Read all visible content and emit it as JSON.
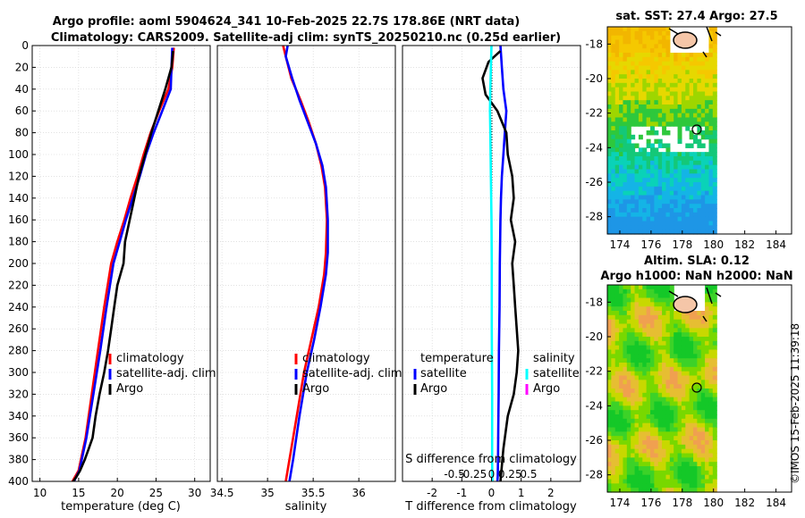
{
  "title_line1": "Argo profile: aoml 5904624_341 10-Feb-2025 22.7S 178.86E (NRT data)",
  "title_line2": "Climatology: CARS2009. Satellite-adj clim: synTS_20250210.nc (0.25d earlier)",
  "watermark": "©IMOS 15-Feb-2025 11:39:18",
  "colors": {
    "climatology": "#ff0000",
    "satellite_adj": "#0000ff",
    "argo": "#000000",
    "salinity_satellite": "#00ffff",
    "salinity_argo": "#ff00ff"
  },
  "chart_data": [
    {
      "type": "line",
      "id": "temperature",
      "xlabel": "temperature (deg C)",
      "ylabel": "",
      "xlim": [
        9,
        32
      ],
      "ylim": [
        400,
        0
      ],
      "xticks": [
        10,
        15,
        20,
        25,
        30
      ],
      "yticks": [
        0,
        20,
        40,
        60,
        80,
        100,
        120,
        140,
        160,
        180,
        200,
        220,
        240,
        260,
        280,
        300,
        320,
        340,
        360,
        380,
        400
      ],
      "grid": true,
      "legend": "center-right",
      "legend_labels": [
        "climatology",
        "satellite-adj. clim",
        "Argo"
      ],
      "series": [
        {
          "name": "climatology",
          "x": [
            27.3,
            27.1,
            26.6,
            25.4,
            24.3,
            23.4,
            22.6,
            21.7,
            20.9,
            20.0,
            19.2,
            18.3,
            17.5,
            16.7,
            15.9,
            15.0,
            14.2
          ],
          "depth": [
            2,
            20,
            40,
            60,
            80,
            100,
            120,
            140,
            160,
            180,
            200,
            240,
            280,
            320,
            360,
            390,
            400
          ]
        },
        {
          "name": "satellite-adj. clim",
          "x": [
            27.1,
            27.0,
            26.9,
            25.8,
            24.7,
            23.7,
            22.9,
            22.0,
            21.1,
            20.3,
            19.5,
            18.6,
            17.8,
            16.9,
            16.0,
            15.1,
            14.4
          ],
          "depth": [
            2,
            20,
            40,
            60,
            80,
            100,
            120,
            140,
            160,
            180,
            200,
            240,
            280,
            320,
            360,
            390,
            400
          ]
        },
        {
          "name": "Argo",
          "x": [
            27.2,
            27.0,
            26.2,
            25.3,
            24.4,
            23.6,
            22.8,
            22.2,
            21.6,
            21.0,
            20.8,
            20.0,
            19.6,
            19.2,
            18.8,
            18.3,
            17.7,
            17.2,
            16.8,
            16.3,
            15.8,
            15.2,
            14.7,
            14.3
          ],
          "depth": [
            5,
            20,
            40,
            60,
            80,
            100,
            120,
            140,
            160,
            180,
            200,
            220,
            240,
            260,
            280,
            300,
            320,
            340,
            360,
            370,
            380,
            390,
            396,
            400
          ]
        }
      ]
    },
    {
      "type": "line",
      "id": "salinity",
      "xlabel": "salinity",
      "xlim": [
        34.45,
        36.4
      ],
      "ylim": [
        400,
        0
      ],
      "xticks": [
        34.5,
        35,
        35.5,
        36
      ],
      "grid": true,
      "legend": "center-right",
      "legend_labels": [
        "climatology",
        "satellite-adj. clim",
        "Argo"
      ],
      "series": [
        {
          "name": "climatology",
          "x": [
            35.17,
            35.2,
            35.26,
            35.36,
            35.45,
            35.53,
            35.59,
            35.63,
            35.65,
            35.64,
            35.62,
            35.56,
            35.48,
            35.4,
            35.32,
            35.24,
            35.2
          ],
          "depth": [
            0,
            10,
            30,
            50,
            70,
            90,
            110,
            130,
            160,
            190,
            210,
            240,
            270,
            300,
            340,
            380,
            400
          ]
        },
        {
          "name": "satellite-adj. clim",
          "x": [
            35.22,
            35.2,
            35.27,
            35.35,
            35.44,
            35.53,
            35.6,
            35.64,
            35.66,
            35.66,
            35.64,
            35.58,
            35.51,
            35.43,
            35.35,
            35.28,
            35.24
          ],
          "depth": [
            0,
            10,
            30,
            50,
            70,
            90,
            110,
            130,
            160,
            190,
            210,
            240,
            270,
            300,
            340,
            380,
            400
          ]
        }
      ]
    },
    {
      "type": "line",
      "id": "difference",
      "xlabel": "T difference from climatology",
      "x2label": "S difference from climatology",
      "xlim": [
        -3,
        3
      ],
      "x2lim": [
        -1.2,
        1.2
      ],
      "ylim": [
        400,
        0
      ],
      "xticks": [
        -2,
        -1,
        0,
        1,
        2
      ],
      "x2ticks": [
        -0.5,
        -0.25,
        0,
        0.25,
        0.5
      ],
      "x2ticklabels": [
        "-0.5",
        "-0.25",
        "0",
        "0.25",
        "0.5"
      ],
      "grid": true,
      "legend": "center",
      "legend_titles": [
        "temperature",
        "salinity"
      ],
      "legend_labels": [
        "satellite",
        "Argo",
        "satellite",
        "Argo"
      ],
      "series": [
        {
          "name": "temperature satellite",
          "x": [
            0.3,
            0.35,
            0.4,
            0.5,
            0.45,
            0.4,
            0.35,
            0.32,
            0.3,
            0.28,
            0.27,
            0.25,
            0.24,
            0.23,
            0.22,
            0.21,
            0.2
          ],
          "depth": [
            0,
            20,
            40,
            60,
            80,
            100,
            120,
            140,
            160,
            200,
            240,
            280,
            320,
            350,
            380,
            395,
            400
          ]
        },
        {
          "name": "temperature Argo",
          "x": [
            0.3,
            -0.1,
            -0.3,
            -0.2,
            0.2,
            0.5,
            0.55,
            0.7,
            0.75,
            0.65,
            0.8,
            0.7,
            0.75,
            0.8,
            0.85,
            0.9,
            0.85,
            0.75,
            0.55,
            0.4,
            0.3
          ],
          "depth": [
            5,
            15,
            30,
            45,
            60,
            80,
            100,
            120,
            140,
            160,
            180,
            200,
            220,
            240,
            260,
            280,
            300,
            320,
            340,
            370,
            400
          ]
        },
        {
          "name": "salinity satellite",
          "x": [
            0.0,
            -0.02,
            -0.04,
            -0.05,
            -0.04,
            -0.02,
            0.0,
            0.01,
            0.01,
            0.02,
            0.02,
            0.03
          ],
          "depth": [
            0,
            20,
            40,
            60,
            80,
            120,
            160,
            200,
            260,
            320,
            380,
            400
          ]
        }
      ]
    },
    {
      "type": "heatmap",
      "id": "sst_map",
      "title": "sat. SST: 27.4 Argo: 27.5",
      "xlim": [
        173.2,
        185
      ],
      "ylim": [
        -29,
        -17
      ],
      "xticks": [
        174,
        176,
        178,
        180,
        182,
        184
      ],
      "yticks": [
        -18,
        -20,
        -22,
        -24,
        -26,
        -28
      ],
      "data_extent_lon": [
        173.2,
        180
      ],
      "float_lon": 178.86,
      "float_lat": -22.7
    },
    {
      "type": "heatmap",
      "id": "sla_map",
      "title_line1": "Altim. SLA: 0.12",
      "title_line2": "Argo h1000: NaN h2000: NaN",
      "xlim": [
        173.2,
        185
      ],
      "ylim": [
        -29,
        -17
      ],
      "xticks": [
        174,
        176,
        178,
        180,
        182,
        184
      ],
      "yticks": [
        -18,
        -20,
        -22,
        -24,
        -26,
        -28
      ],
      "data_extent_lon": [
        173.2,
        180
      ],
      "float_lon": 178.86,
      "float_lat": -22.7
    }
  ]
}
